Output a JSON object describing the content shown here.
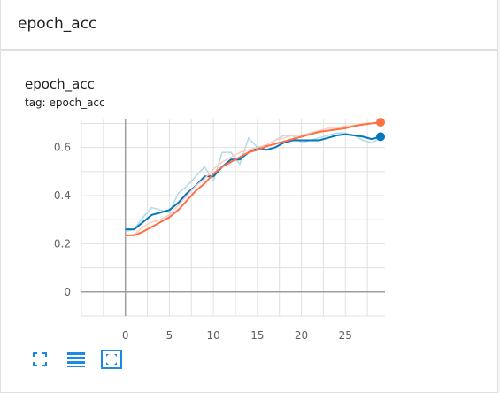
{
  "section": {
    "title": "epoch_acc"
  },
  "card": {
    "title": "epoch_acc",
    "tag": "tag: epoch_acc"
  },
  "colors": {
    "train_smoothed": "#ff7043",
    "train_raw": "#ffccbc",
    "val_smoothed": "#0277bd",
    "val_raw": "#b3d9e6",
    "grid": "#e0e0e0",
    "axis": "#9e9e9e",
    "toolbar": "#1e88e5"
  },
  "toolbar": {
    "icons": [
      "fit-domain-icon",
      "toggle-log-scale-icon",
      "expand-chart-icon"
    ]
  },
  "chart_data": {
    "type": "line",
    "title": "",
    "xlabel": "",
    "ylabel": "",
    "xlim": [
      -5,
      29.5
    ],
    "ylim": [
      -0.1,
      0.72
    ],
    "x_ticks": [
      0,
      5,
      10,
      15,
      20,
      25
    ],
    "y_ticks": [
      0,
      0.2,
      0.4,
      0.6
    ],
    "x_tick_labels": [
      "0",
      "5",
      "10",
      "15",
      "20",
      "25"
    ],
    "y_tick_labels": [
      "0",
      "0.2",
      "0.4",
      "0.6"
    ],
    "grid": true,
    "series": [
      {
        "role": "val_raw",
        "x": [
          0,
          1,
          2,
          3,
          4,
          5,
          6,
          7,
          8,
          9,
          10,
          11,
          12,
          13,
          14,
          15,
          16,
          17,
          18,
          19,
          20,
          21,
          22,
          23,
          24,
          25,
          26,
          27,
          28,
          29
        ],
        "values": [
          0.25,
          0.26,
          0.31,
          0.35,
          0.34,
          0.33,
          0.41,
          0.44,
          0.48,
          0.52,
          0.46,
          0.58,
          0.58,
          0.53,
          0.64,
          0.6,
          0.61,
          0.63,
          0.65,
          0.65,
          0.62,
          0.63,
          0.64,
          0.65,
          0.66,
          0.66,
          0.65,
          0.63,
          0.62,
          0.64
        ]
      },
      {
        "role": "val_smoothed",
        "x": [
          0,
          1,
          2,
          3,
          4,
          5,
          6,
          7,
          8,
          9,
          10,
          11,
          12,
          13,
          14,
          15,
          16,
          17,
          18,
          19,
          20,
          21,
          22,
          23,
          24,
          25,
          26,
          27,
          28,
          29
        ],
        "values": [
          0.26,
          0.26,
          0.29,
          0.32,
          0.33,
          0.34,
          0.37,
          0.41,
          0.44,
          0.48,
          0.48,
          0.52,
          0.55,
          0.55,
          0.58,
          0.6,
          0.59,
          0.6,
          0.62,
          0.63,
          0.63,
          0.63,
          0.63,
          0.64,
          0.65,
          0.655,
          0.65,
          0.645,
          0.635,
          0.645
        ]
      },
      {
        "role": "train_raw",
        "x": [
          0,
          1,
          2,
          3,
          4,
          5,
          6,
          7,
          8,
          9,
          10,
          11,
          12,
          13,
          14,
          15,
          16,
          17,
          18,
          19,
          20,
          21,
          22,
          23,
          24,
          25,
          26,
          27,
          28,
          29
        ],
        "values": [
          0.23,
          0.24,
          0.27,
          0.29,
          0.3,
          0.32,
          0.36,
          0.4,
          0.44,
          0.47,
          0.51,
          0.54,
          0.56,
          0.58,
          0.59,
          0.6,
          0.61,
          0.63,
          0.64,
          0.65,
          0.65,
          0.66,
          0.67,
          0.68,
          0.68,
          0.69,
          0.69,
          0.7,
          0.7,
          0.7
        ]
      },
      {
        "role": "train_smoothed",
        "x": [
          0,
          1,
          2,
          3,
          4,
          5,
          6,
          7,
          8,
          9,
          10,
          11,
          12,
          13,
          14,
          15,
          16,
          17,
          18,
          19,
          20,
          21,
          22,
          23,
          24,
          25,
          26,
          27,
          28,
          29
        ],
        "values": [
          0.235,
          0.235,
          0.25,
          0.27,
          0.29,
          0.31,
          0.34,
          0.38,
          0.42,
          0.45,
          0.49,
          0.52,
          0.54,
          0.56,
          0.58,
          0.59,
          0.605,
          0.615,
          0.625,
          0.635,
          0.645,
          0.655,
          0.665,
          0.67,
          0.675,
          0.68,
          0.69,
          0.695,
          0.7,
          0.705
        ]
      }
    ]
  }
}
